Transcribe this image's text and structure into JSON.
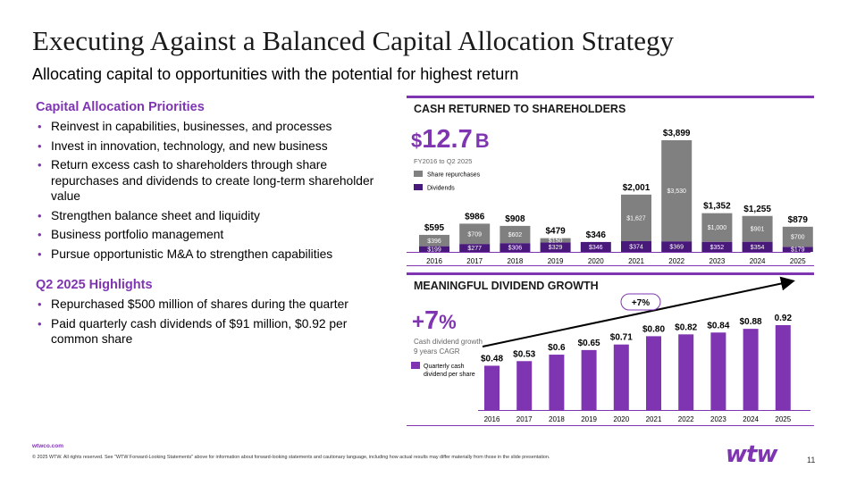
{
  "header": {
    "title": "Executing Against a Balanced Capital Allocation Strategy",
    "subtitle": "Allocating capital to opportunities with the potential for highest return"
  },
  "priorities": {
    "heading": "Capital Allocation Priorities",
    "items": [
      "Reinvest in capabilities, businesses, and processes",
      "Invest in innovation, technology, and new business",
      "Return excess cash to shareholders through share repurchases and dividends to create long-term shareholder value",
      "Strengthen balance sheet and liquidity",
      "Business portfolio management",
      "Pursue opportunistic M&A to strengthen capabilities"
    ]
  },
  "highlights": {
    "heading": "Q2 2025 Highlights",
    "items": [
      "Repurchased $500 million of shares during the quarter",
      "Paid quarterly cash dividends of $91 million, $0.92 per common share"
    ]
  },
  "cash_panel": {
    "title": "CASH RETURNED TO SHAREHOLDERS",
    "big_prefix": "$",
    "big_number": "12.7",
    "big_suffix": "B",
    "period": "FY2016 to Q2 2025",
    "legend_repurchases": "Share repurchases",
    "legend_dividends": "Dividends"
  },
  "dividend_panel": {
    "title": "MEANINGFUL DIVIDEND GROWTH",
    "growth_sign": "+",
    "growth_number": "7",
    "growth_pct": "%",
    "caption_line1": "Cash dividend growth",
    "caption_line2": "9 years CAGR",
    "legend_line1": "Quarterly cash",
    "legend_line2": "dividend per share",
    "trend_label": "+7%"
  },
  "colors": {
    "purple": "#7f35b2",
    "dark_purple": "#48197a",
    "gray": "#808080"
  },
  "chart_data": [
    {
      "type": "bar",
      "stacked": true,
      "title": "CASH RETURNED TO SHAREHOLDERS",
      "categories": [
        "2016",
        "2017",
        "2018",
        "2019",
        "2020",
        "2021",
        "2022",
        "2023",
        "2024",
        "2025"
      ],
      "series": [
        {
          "name": "Dividends",
          "values": [
            199,
            277,
            306,
            329,
            346,
            374,
            369,
            352,
            354,
            179
          ],
          "labels": [
            "$199",
            "$277",
            "$306",
            "$329",
            "$346",
            "$374",
            "$369",
            "$352",
            "$354",
            "$179"
          ]
        },
        {
          "name": "Share repurchases",
          "values": [
            396,
            709,
            602,
            150,
            0,
            1627,
            3530,
            1000,
            901,
            700
          ],
          "labels": [
            "$396",
            "$709",
            "$602",
            "$150",
            "",
            "$1,627",
            "$3,530",
            "$1,000",
            "$901",
            "$700"
          ]
        }
      ],
      "totals": [
        "$595",
        "$986",
        "$908",
        "$479",
        "$346",
        "$2,001",
        "$3,899",
        "$1,352",
        "$1,255",
        "$879"
      ],
      "total_values": [
        595,
        986,
        908,
        479,
        346,
        2001,
        3899,
        1352,
        1255,
        879
      ]
    },
    {
      "type": "bar",
      "title": "MEANINGFUL DIVIDEND GROWTH",
      "categories": [
        "2016",
        "2017",
        "2018",
        "2019",
        "2020",
        "2021",
        "2022",
        "2023",
        "2024",
        "2025"
      ],
      "values": [
        0.48,
        0.53,
        0.6,
        0.65,
        0.71,
        0.8,
        0.82,
        0.84,
        0.88,
        0.92
      ],
      "labels": [
        "$0.48",
        "$0.53",
        "$0.6",
        "$0.65",
        "$0.71",
        "$0.80",
        "$0.82",
        "$0.84",
        "$0.88",
        "0.92"
      ]
    }
  ],
  "footer": {
    "url": "wtwco.com",
    "legal": "© 2025 WTW. All rights reserved. See \"WTW Forward-Looking Statements\" above for information about forward-looking statements and cautionary language, including how actual results may differ materially from those in the slide presentation.",
    "logo": "wtw",
    "page": "11"
  }
}
